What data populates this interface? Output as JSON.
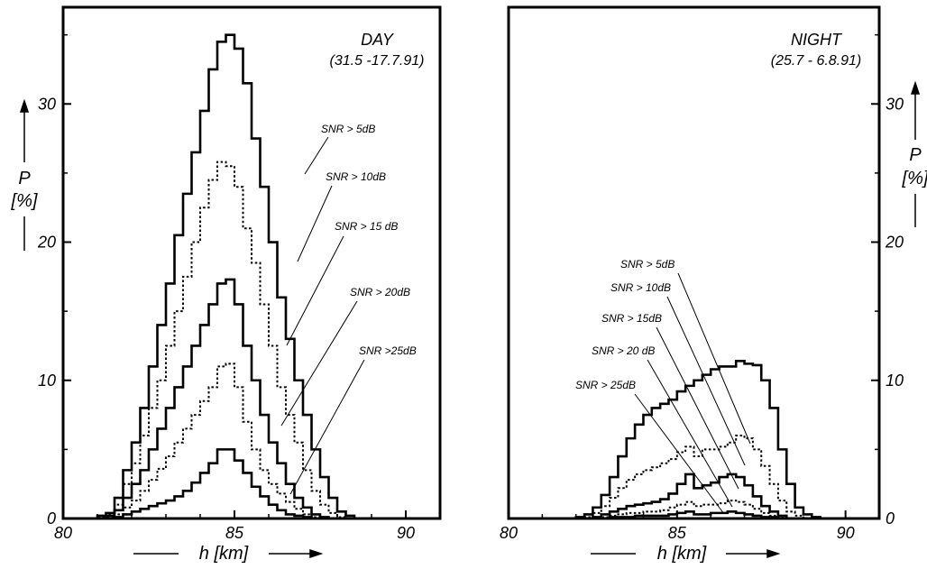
{
  "chart_data": [
    {
      "type": "histogram",
      "title": "DAY",
      "subtitle": "(31.5 -17.7.91)",
      "xlabel": "h [km]",
      "ylabel": "P",
      "yunit": "[%]",
      "xlim": [
        80,
        91
      ],
      "ylim": [
        0,
        37
      ],
      "xticks": [
        80,
        85,
        90
      ],
      "yticks": [
        0,
        10,
        20,
        30
      ],
      "bin_width": 0.25,
      "bin_start": 81.0,
      "series": [
        {
          "name": "SNR > 5 dB",
          "style": "solid",
          "values": [
            0.2,
            0.4,
            1.5,
            3.5,
            5.5,
            8,
            11,
            14,
            17,
            20.5,
            23.5,
            26.5,
            29.5,
            32.5,
            34.5,
            35,
            34,
            31.5,
            27.5,
            24,
            20,
            16,
            13,
            10,
            7.5,
            5,
            3,
            1.5,
            0.5,
            0.2
          ]
        },
        {
          "name": "SNR > 10 dB",
          "style": "dotted",
          "values": [
            0.1,
            0.3,
            1,
            2.5,
            4,
            6,
            8,
            10,
            12.5,
            15,
            17.5,
            20,
            22.5,
            24.5,
            25.8,
            25.5,
            24,
            21,
            18.5,
            15.5,
            12.5,
            9.5,
            7.5,
            5.5,
            3.5,
            2,
            1,
            0.4,
            0.1,
            0
          ]
        },
        {
          "name": "SNR > 15 dB",
          "style": "solid",
          "values": [
            0,
            0.2,
            0.6,
            1.5,
            2.5,
            3.5,
            5,
            6.5,
            8,
            9.5,
            11,
            12.5,
            14,
            15.5,
            17,
            17.3,
            15.5,
            12.5,
            10,
            7.5,
            5.5,
            4,
            2.5,
            1.5,
            0.8,
            0.3,
            0.1,
            0,
            0,
            0
          ]
        },
        {
          "name": "SNR > 20 dB",
          "style": "dotted",
          "values": [
            0,
            0.1,
            0.3,
            0.8,
            1.3,
            2,
            2.8,
            3.6,
            4.5,
            5.5,
            6.5,
            7.5,
            8.5,
            9.5,
            11,
            11.2,
            9.5,
            7,
            5,
            3.5,
            2.5,
            1.8,
            1.2,
            0.7,
            0.3,
            0.1,
            0,
            0,
            0,
            0
          ]
        },
        {
          "name": "SNR > 25 dB",
          "style": "solid",
          "values": [
            0,
            0,
            0.1,
            0.3,
            0.5,
            0.7,
            0.9,
            1.1,
            1.3,
            1.6,
            2,
            2.6,
            3.3,
            4,
            5,
            5,
            4.2,
            3.3,
            2.3,
            1.6,
            1,
            0.6,
            0.3,
            0.2,
            0.1,
            0,
            0,
            0,
            0,
            0
          ]
        }
      ],
      "annotations": [
        "SNR > 5dB",
        "SNR > 10dB",
        "SNR > 15 dB",
        "SNR > 20dB",
        "SNR >25dB"
      ]
    },
    {
      "type": "histogram",
      "title": "NIGHT",
      "subtitle": "(25.7 - 6.8.91)",
      "xlabel": "h [km]",
      "ylabel": "P",
      "yunit": "[%]",
      "xlim": [
        80,
        91
      ],
      "ylim": [
        0,
        37
      ],
      "xticks": [
        80,
        85,
        90
      ],
      "yticks": [
        0,
        10,
        20,
        30
      ],
      "bin_width": 0.25,
      "bin_start": 82.0,
      "series": [
        {
          "name": "SNR > 5 dB",
          "style": "solid",
          "values": [
            0.1,
            0.3,
            0.8,
            1.7,
            3,
            4.5,
            5.8,
            6.8,
            7.5,
            8,
            8.3,
            8.6,
            9.2,
            9.6,
            10,
            10.4,
            10.8,
            11,
            11,
            11.4,
            11.2,
            11.1,
            10,
            8,
            5,
            2.5,
            0.8,
            0.3,
            0.1,
            0
          ]
        },
        {
          "name": "SNR > 10 dB",
          "style": "dotted",
          "values": [
            0,
            0.1,
            0.4,
            0.9,
            1.5,
            2.2,
            2.8,
            3.2,
            3.5,
            3.7,
            4,
            4.3,
            4.8,
            5.2,
            4.5,
            5,
            5,
            5.2,
            5.5,
            6,
            5.8,
            5,
            3.8,
            2.5,
            1.3,
            0.5,
            0.2,
            0,
            0,
            0
          ]
        },
        {
          "name": "SNR > 15 dB",
          "style": "solid",
          "values": [
            0,
            0,
            0.1,
            0.3,
            0.5,
            0.7,
            0.9,
            1,
            1.1,
            1.2,
            1.4,
            1.8,
            2.5,
            3.2,
            2.2,
            2.4,
            2.6,
            3,
            3.2,
            3,
            2.4,
            1.6,
            0.9,
            0.5,
            0.2,
            0,
            0,
            0,
            0,
            0
          ]
        },
        {
          "name": "SNR > 20 dB",
          "style": "dotted",
          "values": [
            0,
            0,
            0,
            0.1,
            0.2,
            0.3,
            0.4,
            0.4,
            0.5,
            0.5,
            0.6,
            0.8,
            1,
            1.2,
            0.9,
            1,
            1,
            1.1,
            1.3,
            1.2,
            1,
            0.7,
            0.4,
            0.2,
            0.1,
            0,
            0,
            0,
            0,
            0
          ]
        },
        {
          "name": "SNR > 25 dB",
          "style": "solid",
          "values": [
            0,
            0,
            0,
            0,
            0.1,
            0.1,
            0.1,
            0.2,
            0.2,
            0.2,
            0.2,
            0.3,
            0.4,
            0.5,
            0.3,
            0.3,
            0.4,
            0.4,
            0.5,
            0.4,
            0.3,
            0.2,
            0.1,
            0.1,
            0,
            0,
            0,
            0,
            0,
            0
          ]
        }
      ],
      "annotations": [
        "SNR > 5dB",
        "SNR > 10dB",
        "SNR > 15dB",
        "SNR > 20 dB",
        "SNR > 25dB"
      ]
    }
  ]
}
